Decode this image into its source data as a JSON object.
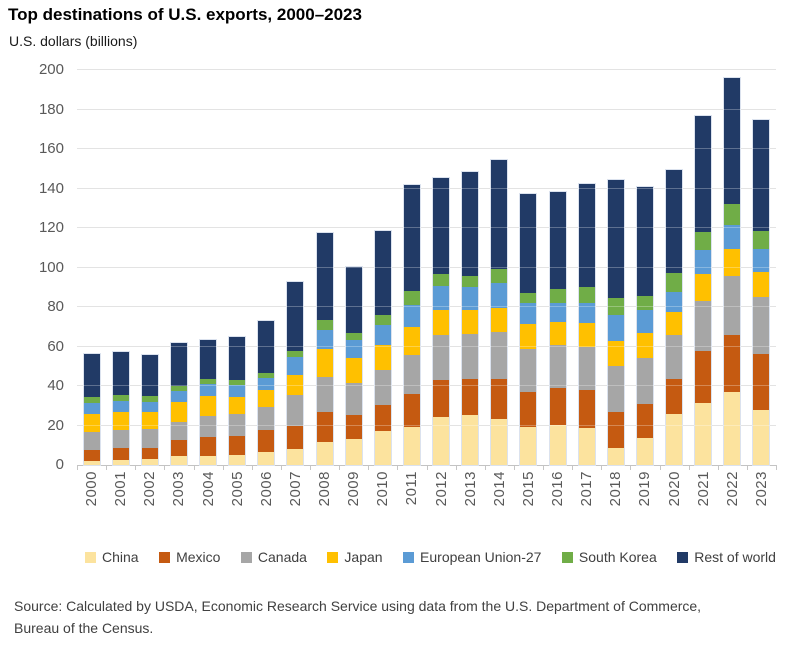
{
  "header": {
    "title": "Top destinations of U.S. exports, 2000–2023",
    "subtitle": "U.S. dollars (billions)"
  },
  "source": {
    "line1": "Source: Calculated by USDA, Economic Research Service using data from the U.S. Department of Commerce,",
    "line2": "Bureau of the Census."
  },
  "colors": {
    "axis_label": "#595959",
    "gridline": "#D9D9D9",
    "baseline": "#C3C3C3",
    "legend_text": "#404040"
  },
  "chart_data": {
    "type": "bar",
    "stacked": true,
    "title": "Top destinations of U.S. exports, 2000–2023",
    "ylabel": "U.S. dollars (billions)",
    "ylim": [
      0,
      200
    ],
    "ytick_interval": 20,
    "grid": true,
    "legend_position": "bottom",
    "categories": [
      "2000",
      "2001",
      "2002",
      "2003",
      "2004",
      "2005",
      "2006",
      "2007",
      "2008",
      "2009",
      "2010",
      "2011",
      "2012",
      "2013",
      "2014",
      "2015",
      "2016",
      "2017",
      "2018",
      "2019",
      "2020",
      "2021",
      "2022",
      "2023"
    ],
    "series": [
      {
        "name": "China",
        "color": "#FCE39E",
        "values": [
          2.0,
          2.5,
          3.0,
          4.5,
          4.5,
          5.0,
          6.5,
          8.0,
          11.5,
          13.0,
          17.0,
          19.5,
          24.5,
          25.5,
          23.5,
          19.5,
          20.5,
          18.5,
          8.5,
          13.5,
          26.0,
          31.5,
          37.0,
          28.0
        ]
      },
      {
        "name": "Mexico",
        "color": "#C55A11",
        "values": [
          5.5,
          6.0,
          5.5,
          8.0,
          9.5,
          9.5,
          11.0,
          12.0,
          15.5,
          12.5,
          13.5,
          16.5,
          18.5,
          18.0,
          20.0,
          17.5,
          18.5,
          19.5,
          18.5,
          17.5,
          17.5,
          26.0,
          29.0,
          28.0
        ]
      },
      {
        "name": "Canada",
        "color": "#A6A6A6",
        "values": [
          9.0,
          9.0,
          9.5,
          9.5,
          11.0,
          11.5,
          12.0,
          15.5,
          17.5,
          16.0,
          17.5,
          19.5,
          23.0,
          23.0,
          24.0,
          22.0,
          22.0,
          22.0,
          23.0,
          23.0,
          22.5,
          25.5,
          29.5,
          29.0
        ]
      },
      {
        "name": "Japan",
        "color": "#FFC000",
        "values": [
          9.5,
          9.5,
          9.0,
          10.0,
          10.0,
          8.5,
          8.5,
          10.0,
          14.0,
          12.5,
          13.0,
          14.5,
          12.5,
          12.0,
          12.0,
          12.5,
          11.5,
          12.0,
          13.0,
          13.0,
          11.5,
          13.5,
          14.0,
          12.5
        ]
      },
      {
        "name": "European Union-27",
        "color": "#5B9BD5",
        "values": [
          5.5,
          5.5,
          5.0,
          5.5,
          6.0,
          6.0,
          6.0,
          9.0,
          10.0,
          9.5,
          10.0,
          11.0,
          12.0,
          11.5,
          12.5,
          10.5,
          9.5,
          10.0,
          13.0,
          11.5,
          10.0,
          12.5,
          12.0,
          12.0
        ]
      },
      {
        "name": "South Korea",
        "color": "#70AD47",
        "values": [
          3.0,
          3.0,
          3.0,
          2.5,
          2.5,
          2.5,
          2.5,
          3.0,
          5.0,
          3.5,
          5.0,
          7.0,
          6.0,
          5.5,
          7.5,
          5.0,
          7.0,
          8.0,
          8.5,
          7.0,
          9.5,
          9.0,
          10.5,
          9.0
        ]
      },
      {
        "name": "Rest of world",
        "color": "#213A66",
        "values": [
          21.5,
          21.5,
          20.5,
          22.0,
          20.0,
          22.0,
          26.5,
          35.0,
          44.0,
          33.5,
          42.5,
          54.0,
          49.0,
          53.0,
          55.0,
          50.0,
          49.5,
          52.5,
          60.0,
          55.5,
          52.5,
          58.5,
          64.0,
          56.0
        ]
      }
    ]
  }
}
